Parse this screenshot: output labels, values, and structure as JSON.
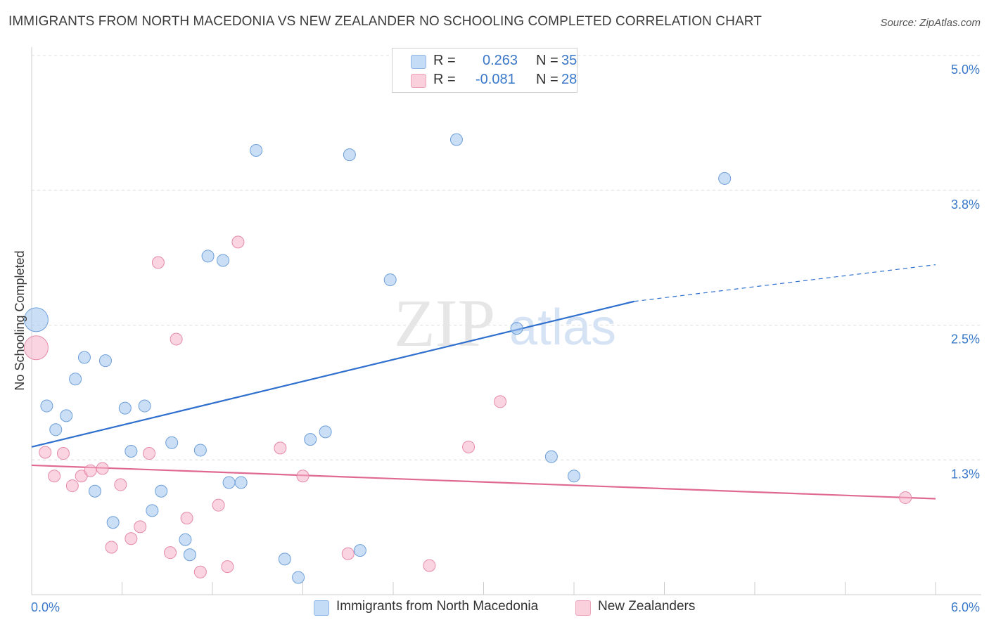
{
  "title": "IMMIGRANTS FROM NORTH MACEDONIA VS NEW ZEALANDER NO SCHOOLING COMPLETED CORRELATION CHART",
  "source": "Source: ZipAtlas.com",
  "watermark": {
    "zip": "ZIP",
    "atlas": "atlas"
  },
  "legend_top": {
    "rows": [
      {
        "r_label": "R =",
        "r_value": "0.263",
        "n_label": "N =",
        "n_value": "35",
        "color": "#9ec3ee"
      },
      {
        "r_label": "R =",
        "r_value": "-0.081",
        "n_label": "N =",
        "n_value": "28",
        "color": "#f5b3c8"
      }
    ]
  },
  "legend_bottom": {
    "series1": "Immigrants from North Macedonia",
    "series2": "New Zealanders"
  },
  "chart_data": {
    "type": "scatter",
    "xlabel": "",
    "ylabel": "No Schooling Completed",
    "xlim": [
      0.0,
      6.0
    ],
    "ylim": [
      0.0,
      5.0
    ],
    "x_tick_labels": [
      "0.0%",
      "6.0%"
    ],
    "y_tick_labels": [
      "1.3%",
      "2.5%",
      "3.8%",
      "5.0%"
    ],
    "y_ticks": [
      1.25,
      2.5,
      3.75,
      5.0
    ],
    "grid": "horizontal-dashed",
    "series": [
      {
        "name": "Immigrants from North Macedonia",
        "color": "#9ec3ee",
        "stroke": "#6e9fd8",
        "trend": {
          "x0": 0.0,
          "y0": 1.37,
          "x1": 4.0,
          "y1": 2.72,
          "dash_to_x": 6.0,
          "dash_to_y": 3.06,
          "color": "#2f6fce"
        },
        "points": [
          {
            "x": 0.03,
            "y": 2.55,
            "big": true
          },
          {
            "x": 0.1,
            "y": 1.75
          },
          {
            "x": 0.16,
            "y": 1.53
          },
          {
            "x": 0.23,
            "y": 1.66
          },
          {
            "x": 0.29,
            "y": 2.0
          },
          {
            "x": 0.35,
            "y": 2.2
          },
          {
            "x": 0.42,
            "y": 0.96
          },
          {
            "x": 0.49,
            "y": 2.17
          },
          {
            "x": 0.54,
            "y": 0.67
          },
          {
            "x": 0.62,
            "y": 1.73
          },
          {
            "x": 0.66,
            "y": 1.33
          },
          {
            "x": 0.75,
            "y": 1.75
          },
          {
            "x": 0.8,
            "y": 0.78
          },
          {
            "x": 0.86,
            "y": 0.96
          },
          {
            "x": 0.93,
            "y": 1.41
          },
          {
            "x": 1.02,
            "y": 0.51
          },
          {
            "x": 1.05,
            "y": 0.37
          },
          {
            "x": 1.12,
            "y": 1.34
          },
          {
            "x": 1.17,
            "y": 3.14
          },
          {
            "x": 1.27,
            "y": 3.1
          },
          {
            "x": 1.31,
            "y": 1.04
          },
          {
            "x": 1.39,
            "y": 1.04
          },
          {
            "x": 1.49,
            "y": 4.12
          },
          {
            "x": 1.68,
            "y": 0.33
          },
          {
            "x": 1.77,
            "y": 0.16
          },
          {
            "x": 1.85,
            "y": 1.44
          },
          {
            "x": 1.95,
            "y": 1.51
          },
          {
            "x": 2.11,
            "y": 4.08
          },
          {
            "x": 2.18,
            "y": 0.41
          },
          {
            "x": 2.38,
            "y": 2.92
          },
          {
            "x": 2.82,
            "y": 4.22
          },
          {
            "x": 3.22,
            "y": 2.47
          },
          {
            "x": 3.45,
            "y": 1.28
          },
          {
            "x": 3.6,
            "y": 1.1
          },
          {
            "x": 4.6,
            "y": 3.86
          }
        ]
      },
      {
        "name": "New Zealanders",
        "color": "#f5b3c8",
        "stroke": "#e58aa6",
        "trend": {
          "x0": 0.0,
          "y0": 1.2,
          "x1": 6.0,
          "y1": 0.89,
          "color": "#e06992"
        },
        "points": [
          {
            "x": 0.03,
            "y": 2.29,
            "big": true
          },
          {
            "x": 0.09,
            "y": 1.32
          },
          {
            "x": 0.15,
            "y": 1.1
          },
          {
            "x": 0.21,
            "y": 1.31
          },
          {
            "x": 0.27,
            "y": 1.01
          },
          {
            "x": 0.33,
            "y": 1.1
          },
          {
            "x": 0.39,
            "y": 1.15
          },
          {
            "x": 0.47,
            "y": 1.17
          },
          {
            "x": 0.53,
            "y": 0.44
          },
          {
            "x": 0.59,
            "y": 1.02
          },
          {
            "x": 0.66,
            "y": 0.52
          },
          {
            "x": 0.72,
            "y": 0.63
          },
          {
            "x": 0.78,
            "y": 1.31
          },
          {
            "x": 0.84,
            "y": 3.08
          },
          {
            "x": 0.92,
            "y": 0.39
          },
          {
            "x": 0.96,
            "y": 2.37
          },
          {
            "x": 1.03,
            "y": 0.71
          },
          {
            "x": 1.12,
            "y": 0.21
          },
          {
            "x": 1.24,
            "y": 0.83
          },
          {
            "x": 1.3,
            "y": 0.26
          },
          {
            "x": 1.37,
            "y": 3.27
          },
          {
            "x": 1.65,
            "y": 1.36
          },
          {
            "x": 1.8,
            "y": 1.1
          },
          {
            "x": 2.1,
            "y": 0.38
          },
          {
            "x": 2.64,
            "y": 0.27
          },
          {
            "x": 2.9,
            "y": 1.37
          },
          {
            "x": 3.11,
            "y": 1.79
          },
          {
            "x": 5.8,
            "y": 0.9
          }
        ]
      }
    ]
  }
}
